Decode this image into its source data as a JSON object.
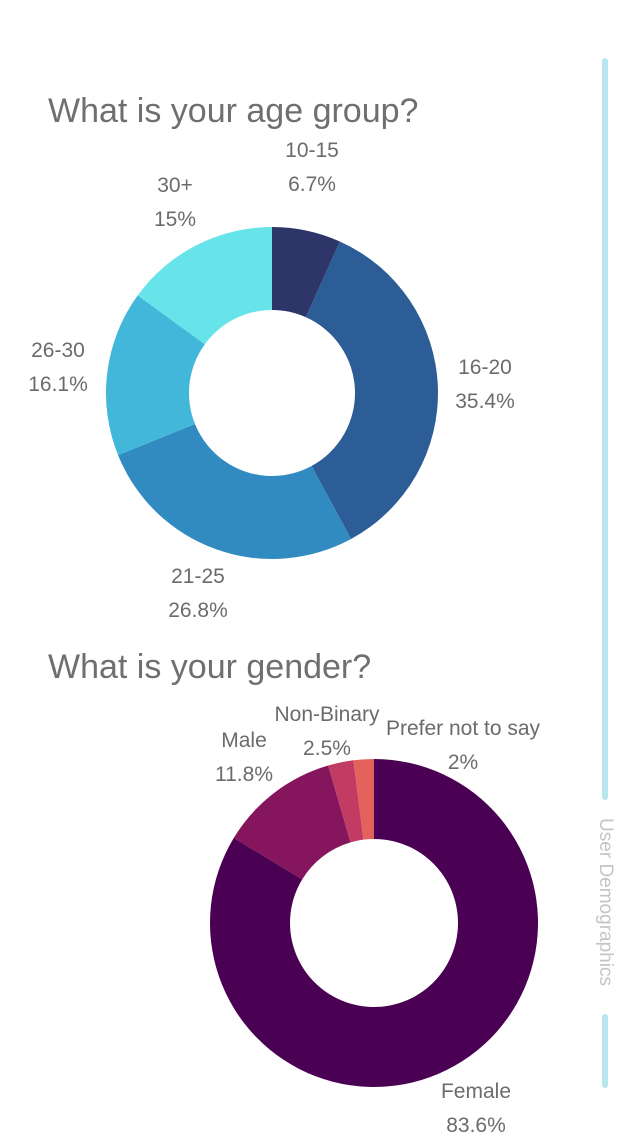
{
  "chart_data": [
    {
      "type": "pie",
      "title": "What is your age group?",
      "categories": [
        "10-15",
        "16-20",
        "21-25",
        "26-30",
        "30+"
      ],
      "values": [
        6.7,
        35.4,
        26.8,
        16.1,
        15
      ],
      "value_labels": [
        "6.7%",
        "35.4%",
        "26.8%",
        "16.1%",
        "15%"
      ],
      "colors": [
        "#2e3569",
        "#2d5d96",
        "#318bc1",
        "#42b7da",
        "#67e3ea"
      ],
      "donut": true,
      "legend": "none"
    },
    {
      "type": "pie",
      "title": "What is your gender?",
      "categories": [
        "Female",
        "Male",
        "Non-Binary",
        "Prefer not to say"
      ],
      "values": [
        83.6,
        11.8,
        2.5,
        2
      ],
      "value_labels": [
        "83.6%",
        "11.8%",
        "2.5%",
        "2%"
      ],
      "colors": [
        "#4a0053",
        "#85155d",
        "#c13b63",
        "#e3635c"
      ],
      "donut": true,
      "legend": "none"
    }
  ],
  "sidebar": {
    "title": "User Demographics",
    "accent": "#b7e6ee"
  }
}
